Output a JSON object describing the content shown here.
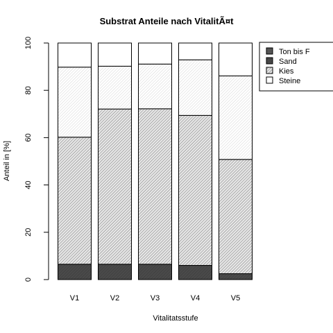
{
  "chart_data": {
    "type": "bar",
    "stacked": true,
    "title": "Substrat Anteile nach VitalitÃ¤t",
    "xlabel": "Vitalitatsstufe",
    "ylabel": "Anteil in [%]",
    "ylim": [
      0,
      100
    ],
    "yticks": [
      0,
      20,
      40,
      60,
      80,
      100
    ],
    "categories": [
      "V1",
      "V2",
      "V3",
      "V4",
      "V5"
    ],
    "series": [
      {
        "name": "Ton bis F",
        "values": [
          0,
          0,
          0,
          0,
          0
        ],
        "fill": "#555555",
        "pattern": "solid-dark"
      },
      {
        "name": "Sand",
        "values": [
          6.5,
          6.5,
          6.5,
          6.0,
          2.5
        ],
        "fill": "#444444",
        "pattern": "hatch-dense-dark"
      },
      {
        "name": "Kies",
        "values": [
          53.7,
          65.6,
          65.7,
          63.4,
          48.3
        ],
        "fill": "#d9d9d9",
        "pattern": "hatch-dense"
      },
      {
        "name": "Steine",
        "values": [
          29.6,
          18.1,
          18.9,
          23.5,
          35.3
        ],
        "fill": "#f4f4f4",
        "pattern": "hatch-light"
      },
      {
        "name": "",
        "values": [
          10.2,
          9.8,
          8.9,
          7.1,
          13.9
        ],
        "fill": "#ffffff",
        "pattern": "none"
      }
    ],
    "legend": {
      "position": "top-right",
      "entries": [
        "Ton bis F",
        "Sand",
        "Kies",
        "Steine"
      ]
    },
    "grid": false
  }
}
